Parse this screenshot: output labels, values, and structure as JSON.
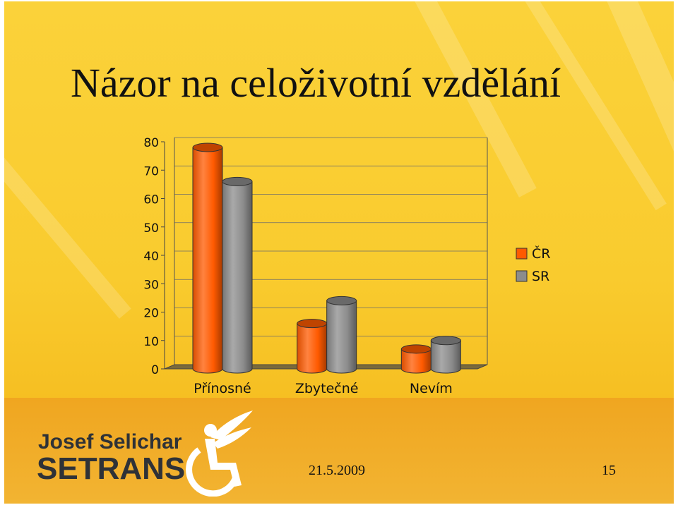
{
  "slide": {
    "title": "Názor na celoživotní vzdělání",
    "footer_date": "21.5.2009",
    "page_number": "15"
  },
  "logo": {
    "name": "Josef Selichar",
    "brand": "SETRANS",
    "emblem_icon": "wheelchair-angel-icon"
  },
  "colors": {
    "background": "#f9cb2e",
    "series_cr": "#ff5a00",
    "series_sr": "#8c8c8c"
  },
  "chart_data": {
    "type": "bar",
    "categories": [
      "Přínosné",
      "Zbytečné",
      "Nevím"
    ],
    "series": [
      {
        "name": "ČR",
        "values": [
          78,
          16,
          7
        ],
        "color": "#ff5a00"
      },
      {
        "name": "SR",
        "values": [
          66,
          24,
          10
        ],
        "color": "#8c8c8c"
      }
    ],
    "ylim": [
      0,
      80
    ],
    "yticks": [
      0,
      10,
      20,
      30,
      40,
      50,
      60,
      70,
      80
    ],
    "grid": true,
    "legend": "right",
    "style": "3d-cylinder"
  }
}
